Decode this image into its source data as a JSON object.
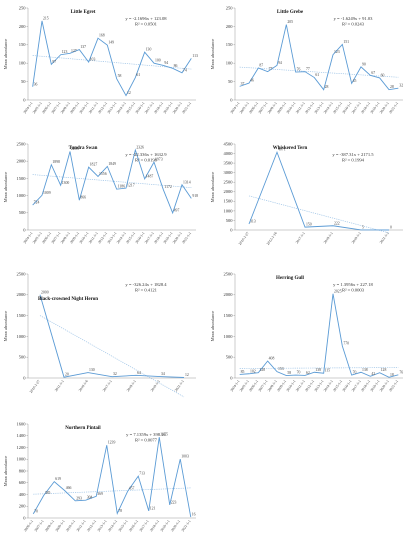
{
  "chart_data": [
    {
      "type": "line",
      "title": "Little Egret",
      "y_label": "Mean abundance",
      "color": "#5b9bd5",
      "categories": [
        "2004-1-1",
        "2005-1-1",
        "2006-1-1",
        "2007-1-1",
        "2008-1-1",
        "2009-1-1",
        "2010-1-1",
        "2011-1-1",
        "2012-1-1",
        "2013-1-1",
        "2014-1-1",
        "2015-1-1",
        "2016-1-1",
        "2017-1-1",
        "2018-1-1",
        "2019-1-1",
        "2020-1-1",
        "2021-1-1"
      ],
      "values": [
        36,
        215,
        97,
        123,
        127,
        137,
        103,
        168,
        149,
        58,
        12,
        61,
        130,
        100,
        94,
        86,
        74,
        113
      ],
      "ylim": [
        0,
        250
      ],
      "yticks": [
        0,
        50,
        100,
        150,
        200,
        250
      ],
      "trend": {
        "slope": -2.1696,
        "intercept": 123.08,
        "label": "y = -2.1696x + 123.08"
      },
      "r_squared": "R² = 0.0501"
    },
    {
      "type": "line",
      "title": "Little Grebe",
      "y_label": "Mean abundance",
      "color": "#5b9bd5",
      "categories": [
        "2004-1-1",
        "2005-1-1",
        "2006-1-1",
        "2007-1-1",
        "2008-1-1",
        "2009-1-1",
        "2010-1-1",
        "2011-1-1",
        "2012-1-1",
        "2013-1-1",
        "2014-1-1",
        "2015-1-1",
        "2016-1-1",
        "2017-1-1",
        "2018-1-1",
        "2019-1-1",
        "2020-1-1",
        "2021-1-1"
      ],
      "values": [
        37,
        46,
        87,
        77,
        94,
        205,
        76,
        77,
        61,
        28,
        123,
        151,
        45,
        90,
        67,
        60,
        28,
        32
      ],
      "ylim": [
        0,
        250
      ],
      "yticks": [
        0,
        50,
        100,
        150,
        200,
        250
      ],
      "trend": {
        "slope": -1.6249,
        "intercept": 91.03,
        "label": "y = -1.6249x + 91.03"
      },
      "r_squared": "R² = 0.0243"
    },
    {
      "type": "line",
      "title": "Tundra Swan",
      "y_label": "Mean abundance",
      "color": "#5b9bd5",
      "categories": [
        "2004-1-1",
        "2005-1-1",
        "2006-1-1",
        "2007-1-1",
        "2008-1-1",
        "2009-1-1",
        "2010-1-1",
        "2011-1-1",
        "2012-1-1",
        "2013-1-1",
        "2014-1-1",
        "2015-1-1",
        "2016-1-1",
        "2017-1-1",
        "2018-1-1",
        "2019-1-1",
        "2020-1-1",
        "2021-1-1"
      ],
      "values": [
        724,
        1009,
        1898,
        1300,
        2283,
        866,
        1827,
        1556,
        1849,
        1186,
        1217,
        2326,
        1487,
        1973,
        1172,
        497,
        1314,
        918
      ],
      "ylim": [
        0,
        2500
      ],
      "yticks": [
        0,
        500,
        1000,
        1500,
        2000,
        2500
      ],
      "trend": {
        "slope": -22.336,
        "intercept": 1632.9,
        "label": "y = -22.336x + 1632.9"
      },
      "r_squared": "R² = 0.0198"
    },
    {
      "type": "line",
      "title": "Whiskered Tern",
      "y_label": "Mean abundance",
      "color": "#5b9bd5",
      "categories": [
        "2010-1-27",
        "2012-1-16",
        "2017-1-1",
        "2018-1-1",
        "2019-1-1",
        "2021-1-1"
      ],
      "values": [
        313,
        4071,
        150,
        222,
        5,
        0
      ],
      "ylim": [
        0,
        4500
      ],
      "yticks": [
        0,
        500,
        1000,
        1500,
        2000,
        2500,
        3000,
        3500,
        4000,
        4500
      ],
      "trend": {
        "slope": -387.31,
        "intercept": 2171.5,
        "label": "y = -387.31x + 2171.5"
      },
      "r_squared": "R² = 0.1994"
    },
    {
      "type": "line",
      "title": "Black-crowned Night Heron",
      "y_label": "Mean abundance",
      "color": "#5b9bd5",
      "categories": [
        "2010-1-27",
        "2011-1-1",
        "2016-1-6",
        "2017-1-1",
        "2018-1-1",
        "2019-1-1",
        "2021-1-1"
      ],
      "values": [
        2000,
        20,
        130,
        32,
        64,
        34,
        12
      ],
      "ylim": [
        0,
        2500
      ],
      "yticks": [
        0,
        500,
        1000,
        1500,
        2000,
        2500
      ],
      "trend": {
        "slope": -326.24,
        "intercept": 1828.4,
        "label": "y = -326.24x + 1828.4"
      },
      "r_squared": "R² = 0.4121"
    },
    {
      "type": "line",
      "title": "Herring Gull",
      "y_label": "Mean abundance",
      "color": "#5b9bd5",
      "categories": [
        "2004-1-1",
        "2005-1-1",
        "2006-1-1",
        "2007-1-1",
        "2008-1-1",
        "2009-1-1",
        "2010-1-1",
        "2011-1-1",
        "2012-1-1",
        "2013-1-1",
        "2014-1-1",
        "2015-1-1",
        "2016-1-1",
        "2017-1-1",
        "2018-1-1",
        "2019-1-1",
        "2020-1-1",
        "2021-1-1"
      ],
      "values": [
        85,
        102,
        128,
        408,
        153,
        58,
        70,
        62,
        138,
        115,
        2025,
        770,
        70,
        138,
        42,
        128,
        18,
        76
      ],
      "ylim": [
        0,
        2500
      ],
      "yticks": [
        0,
        500,
        1000,
        1500,
        2000,
        2500
      ],
      "trend": {
        "slope": 1.3956,
        "intercept": 227.18,
        "label": "y = 1.3956x + 227.18"
      },
      "r_squared": "R² = 0.0003"
    },
    {
      "type": "line",
      "title": "Northern Pintail",
      "y_label": "Mean abundance",
      "color": "#5b9bd5",
      "categories": [
        "2006-1-1",
        "2007-1-1",
        "2008-1-1",
        "2009-1-1",
        "2010-1-1",
        "2011-1-1",
        "2012-1-1",
        "2013-1-1",
        "2014-1-1",
        "2015-1-1",
        "2016-1-1",
        "2017-1-1",
        "2018-1-1",
        "2019-1-1",
        "2020-1-1",
        "2021-1-1"
      ],
      "values": [
        70,
        385,
        619,
        466,
        293,
        304,
        369,
        1239,
        78,
        457,
        713,
        121,
        1375,
        223,
        1003,
        16
      ],
      "ylim": [
        0,
        1600
      ],
      "yticks": [
        0,
        200,
        400,
        600,
        800,
        1000,
        1200,
        1400,
        1600
      ],
      "trend": {
        "slope": 7.1359,
        "intercept": 398.16,
        "label": "y = 7.1359x + 398.16"
      },
      "r_squared": "R² = 0.0077"
    }
  ]
}
